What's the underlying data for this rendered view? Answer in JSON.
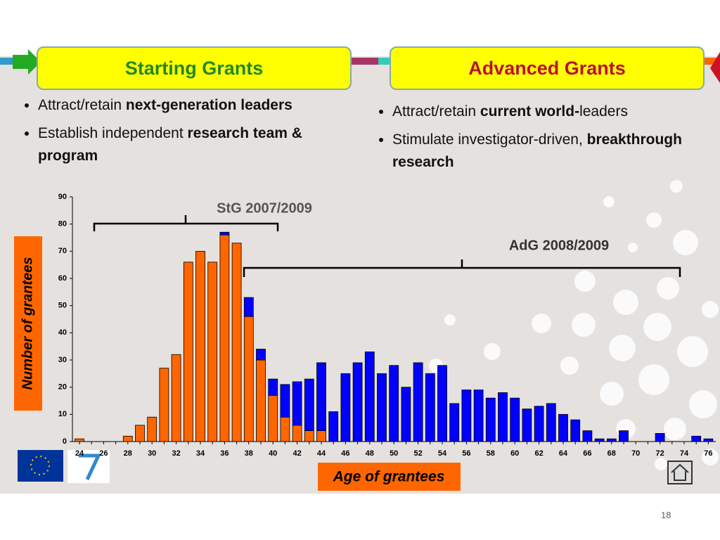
{
  "slide": {
    "columns": [
      {
        "title": "Starting Grants",
        "bullets": [
          [
            "Attract/retain ",
            "next-generation leaders"
          ],
          [
            "Establish independent ",
            "research team & program"
          ]
        ]
      },
      {
        "title": "Advanced Grants",
        "bullets": [
          [
            "Attract/retain ",
            "current world-",
            "leaders"
          ],
          [
            "Stimulate investigator-driven, ",
            "breakthrough research"
          ]
        ]
      }
    ],
    "page_number": "18"
  },
  "chart_data": {
    "type": "stacked_bar",
    "xlabel": "Age of grantees",
    "ylabel": "Number of grantees",
    "annotations": [
      "StG 2007/2009",
      "AdG 2008/2009"
    ],
    "categories": [
      24,
      null,
      26,
      null,
      28,
      null,
      30,
      null,
      32,
      null,
      34,
      null,
      36,
      null,
      38,
      null,
      40,
      null,
      42,
      null,
      44,
      null,
      46,
      null,
      48,
      null,
      50,
      null,
      52,
      null,
      54,
      null,
      56,
      null,
      58,
      null,
      60,
      null,
      62,
      null,
      64,
      null,
      66,
      null,
      68,
      null,
      70,
      null,
      72,
      null,
      74,
      null,
      76
    ],
    "series": [
      {
        "color": "#ff6600",
        "values": [
          1,
          0,
          0,
          0,
          2,
          6,
          9,
          27,
          32,
          66,
          70,
          66,
          76,
          73,
          46,
          30,
          17,
          9,
          6,
          4,
          4,
          0,
          0,
          0,
          0,
          0,
          0,
          0,
          0,
          0,
          0,
          0,
          0,
          0,
          0,
          0,
          0,
          0,
          0,
          0,
          0,
          0,
          0,
          0,
          0,
          0,
          0,
          0,
          0,
          0,
          0,
          0,
          0
        ]
      },
      {
        "color": "#0000ff",
        "values": [
          0,
          0,
          0,
          0,
          0,
          0,
          0,
          0,
          0,
          0,
          0,
          0,
          1,
          0,
          7,
          4,
          6,
          12,
          16,
          19,
          25,
          11,
          25,
          29,
          33,
          25,
          28,
          20,
          29,
          25,
          28,
          14,
          19,
          19,
          16,
          18,
          16,
          12,
          13,
          14,
          10,
          8,
          4,
          1,
          1,
          4,
          0,
          0,
          3,
          0,
          0,
          2,
          1
        ]
      }
    ],
    "ylim": [
      0,
      90
    ],
    "yticks": [
      0,
      10,
      20,
      30,
      40,
      50,
      60,
      70,
      80,
      90
    ]
  }
}
